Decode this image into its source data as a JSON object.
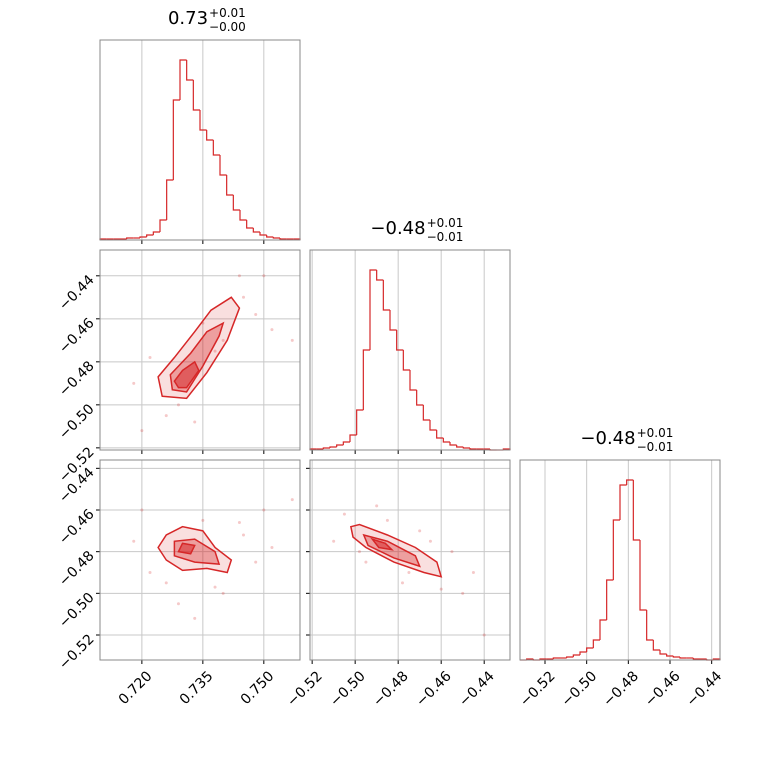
{
  "chart_data": [
    {
      "type": "histogram",
      "title": "0.73",
      "title_plus": "+0.01",
      "title_minus": "−0.00",
      "color": "#d62728",
      "grid": true,
      "bins": [
        0.7097,
        0.71134,
        0.71298,
        0.71462,
        0.71626,
        0.7179,
        0.71954,
        0.72118,
        0.72282,
        0.72446,
        0.7261,
        0.72774,
        0.72938,
        0.73102,
        0.73266,
        0.7343,
        0.73594,
        0.73758,
        0.73922,
        0.74086,
        0.7425,
        0.74414,
        0.74578,
        0.74742,
        0.74906,
        0.7507,
        0.75234,
        0.75398,
        0.75562,
        0.75726,
        0.7589
      ],
      "counts": [
        1,
        1,
        1,
        1,
        2,
        2,
        3,
        5,
        8,
        20,
        60,
        140,
        180,
        160,
        130,
        110,
        100,
        85,
        65,
        45,
        30,
        20,
        12,
        8,
        5,
        3,
        2,
        1,
        1,
        1
      ],
      "xlim": [
        0.7097,
        0.7589
      ],
      "ylim": [
        0,
        200
      ],
      "xticks": [
        0.72,
        0.735,
        0.75
      ]
    },
    {
      "type": "histogram",
      "title": "−0.48",
      "title_plus": "+0.01",
      "title_minus": "−0.01",
      "color": "#d62728",
      "grid": true,
      "bins": [
        -0.521,
        -0.5179,
        -0.5148,
        -0.5117,
        -0.5086,
        -0.5055,
        -0.5024,
        -0.4993,
        -0.4962,
        -0.4931,
        -0.49,
        -0.4869,
        -0.4838,
        -0.4807,
        -0.4776,
        -0.4745,
        -0.4714,
        -0.4683,
        -0.4652,
        -0.4621,
        -0.459,
        -0.4559,
        -0.4528,
        -0.4497,
        -0.4466,
        -0.4435,
        -0.4404,
        -0.4373,
        -0.4342,
        -0.4311,
        -0.428
      ],
      "counts": [
        1,
        1,
        2,
        3,
        5,
        8,
        15,
        40,
        100,
        180,
        170,
        140,
        120,
        100,
        80,
        60,
        45,
        30,
        20,
        12,
        8,
        5,
        3,
        2,
        1,
        1,
        1,
        0,
        0,
        1
      ],
      "xlim": [
        -0.521,
        -0.428
      ],
      "ylim": [
        0,
        200
      ],
      "xticks": [
        -0.52,
        -0.5,
        -0.48,
        -0.46,
        -0.44
      ]
    },
    {
      "type": "histogram",
      "title": "−0.48",
      "title_plus": "+0.01",
      "title_minus": "−0.01",
      "color": "#d62728",
      "grid": true,
      "bins": [
        -0.532,
        -0.5288,
        -0.5256,
        -0.5224,
        -0.5192,
        -0.516,
        -0.5128,
        -0.5096,
        -0.5064,
        -0.5032,
        -0.5,
        -0.4968,
        -0.4936,
        -0.4904,
        -0.4872,
        -0.484,
        -0.4808,
        -0.4776,
        -0.4744,
        -0.4712,
        -0.468,
        -0.4648,
        -0.4616,
        -0.4584,
        -0.4552,
        -0.452,
        -0.4488,
        -0.4456,
        -0.4424,
        -0.4392,
        -0.436
      ],
      "counts": [
        0,
        1,
        0,
        1,
        1,
        2,
        2,
        3,
        5,
        8,
        12,
        20,
        40,
        80,
        140,
        175,
        180,
        120,
        50,
        20,
        10,
        6,
        4,
        3,
        2,
        2,
        1,
        1,
        0,
        1
      ],
      "xlim": [
        -0.532,
        -0.436
      ],
      "ylim": [
        0,
        200
      ],
      "xticks": [
        {
          "value": -0.52,
          "label": "−0.52"
        },
        {
          "value": -0.5,
          "label": "−0.50"
        },
        {
          "value": -0.48,
          "label": "−0.48"
        },
        {
          "value": -0.46,
          "label": "−0.46"
        },
        {
          "value": -0.44,
          "label": "−0.44"
        }
      ]
    },
    {
      "type": "scatter",
      "color": "#d62728",
      "grid": true,
      "x": [
        0.718,
        0.722,
        0.745,
        0.75,
        0.726,
        0.74,
        0.735,
        0.748,
        0.729,
        0.738,
        0.752,
        0.72,
        0.744,
        0.733,
        0.757
      ],
      "y": [
        -0.49,
        -0.478,
        -0.45,
        -0.44,
        -0.505,
        -0.47,
        -0.462,
        -0.458,
        -0.5,
        -0.475,
        -0.465,
        -0.512,
        -0.44,
        -0.508,
        -0.47
      ],
      "contours": [
        {
          "x": [
            0.725,
            0.731,
            0.736,
            0.741,
            0.744,
            0.742,
            0.737,
            0.733,
            0.728,
            0.724
          ],
          "y": [
            -0.496,
            -0.497,
            -0.485,
            -0.47,
            -0.455,
            -0.45,
            -0.456,
            -0.466,
            -0.478,
            -0.487
          ]
        },
        {
          "x": [
            0.7275,
            0.731,
            0.735,
            0.739,
            0.74,
            0.736,
            0.732,
            0.727
          ],
          "y": [
            -0.493,
            -0.494,
            -0.482,
            -0.468,
            -0.462,
            -0.466,
            -0.476,
            -0.486
          ]
        },
        {
          "x": [
            0.729,
            0.731,
            0.734,
            0.733,
            0.73,
            0.728
          ],
          "y": [
            -0.492,
            -0.492,
            -0.484,
            -0.48,
            -0.484,
            -0.489
          ]
        }
      ],
      "xlim": [
        0.7097,
        0.7589
      ],
      "ylim": [
        -0.521,
        -0.428
      ],
      "xticks": [
        0.72,
        0.735,
        0.75
      ],
      "yticks": [
        {
          "value": -0.44,
          "label": "−0.44"
        },
        {
          "value": -0.46,
          "label": "−0.46"
        },
        {
          "value": -0.48,
          "label": "−0.48"
        },
        {
          "value": -0.5,
          "label": "−0.50"
        },
        {
          "value": -0.52,
          "label": "−0.52"
        }
      ]
    },
    {
      "type": "scatter",
      "color": "#d62728",
      "grid": true,
      "x": [
        0.718,
        0.722,
        0.745,
        0.75,
        0.726,
        0.74,
        0.735,
        0.748,
        0.729,
        0.738,
        0.752,
        0.72,
        0.744,
        0.733,
        0.757
      ],
      "y": [
        -0.475,
        -0.49,
        -0.472,
        -0.46,
        -0.495,
        -0.5,
        -0.465,
        -0.485,
        -0.505,
        -0.497,
        -0.478,
        -0.46,
        -0.466,
        -0.512,
        -0.455
      ],
      "contours": [
        {
          "x": [
            0.726,
            0.73,
            0.736,
            0.741,
            0.742,
            0.738,
            0.735,
            0.73,
            0.726,
            0.724
          ],
          "y": [
            -0.484,
            -0.489,
            -0.488,
            -0.49,
            -0.484,
            -0.478,
            -0.47,
            -0.468,
            -0.472,
            -0.478
          ]
        },
        {
          "x": [
            0.728,
            0.733,
            0.739,
            0.738,
            0.733,
            0.728
          ],
          "y": [
            -0.482,
            -0.485,
            -0.486,
            -0.48,
            -0.474,
            -0.475
          ]
        },
        {
          "x": [
            0.729,
            0.732,
            0.733,
            0.73
          ],
          "y": [
            -0.48,
            -0.481,
            -0.477,
            -0.476
          ]
        }
      ],
      "xlim": [
        0.7097,
        0.7589
      ],
      "ylim": [
        -0.532,
        -0.436
      ],
      "xticks": [
        {
          "value": 0.72,
          "label": "0.720"
        },
        {
          "value": 0.735,
          "label": "0.735"
        },
        {
          "value": 0.75,
          "label": "0.750"
        }
      ],
      "yticks": [
        {
          "value": -0.44,
          "label": "−0.44"
        },
        {
          "value": -0.46,
          "label": "−0.46"
        },
        {
          "value": -0.48,
          "label": "−0.48"
        },
        {
          "value": -0.5,
          "label": "−0.50"
        },
        {
          "value": -0.52,
          "label": "−0.52"
        }
      ]
    },
    {
      "type": "scatter",
      "color": "#d62728",
      "grid": true,
      "x": [
        -0.505,
        -0.498,
        -0.49,
        -0.475,
        -0.47,
        -0.46,
        -0.455,
        -0.45,
        -0.485,
        -0.465,
        -0.44,
        -0.51,
        -0.478,
        -0.445,
        -0.495
      ],
      "y": [
        -0.462,
        -0.48,
        -0.458,
        -0.49,
        -0.47,
        -0.498,
        -0.48,
        -0.5,
        -0.465,
        -0.475,
        -0.52,
        -0.475,
        -0.495,
        -0.49,
        -0.485
      ],
      "contours": [
        {
          "x": [
            -0.502,
            -0.498,
            -0.485,
            -0.472,
            -0.462,
            -0.46,
            -0.468,
            -0.482,
            -0.495,
            -0.501
          ],
          "y": [
            -0.468,
            -0.467,
            -0.472,
            -0.478,
            -0.485,
            -0.492,
            -0.49,
            -0.485,
            -0.478,
            -0.473
          ]
        },
        {
          "x": [
            -0.496,
            -0.485,
            -0.472,
            -0.47,
            -0.482,
            -0.494
          ],
          "y": [
            -0.472,
            -0.475,
            -0.482,
            -0.487,
            -0.483,
            -0.477
          ]
        },
        {
          "x": [
            -0.492,
            -0.486,
            -0.483,
            -0.489
          ],
          "y": [
            -0.474,
            -0.476,
            -0.479,
            -0.478
          ]
        }
      ],
      "xlim": [
        -0.521,
        -0.428
      ],
      "ylim": [
        -0.532,
        -0.436
      ],
      "xticks": [
        {
          "value": -0.52,
          "label": "−0.52"
        },
        {
          "value": -0.5,
          "label": "−0.50"
        },
        {
          "value": -0.48,
          "label": "−0.48"
        },
        {
          "value": -0.46,
          "label": "−0.46"
        },
        {
          "value": -0.44,
          "label": "−0.44"
        }
      ],
      "yticks": [
        -0.44,
        -0.46,
        -0.48,
        -0.5,
        -0.52
      ]
    }
  ]
}
